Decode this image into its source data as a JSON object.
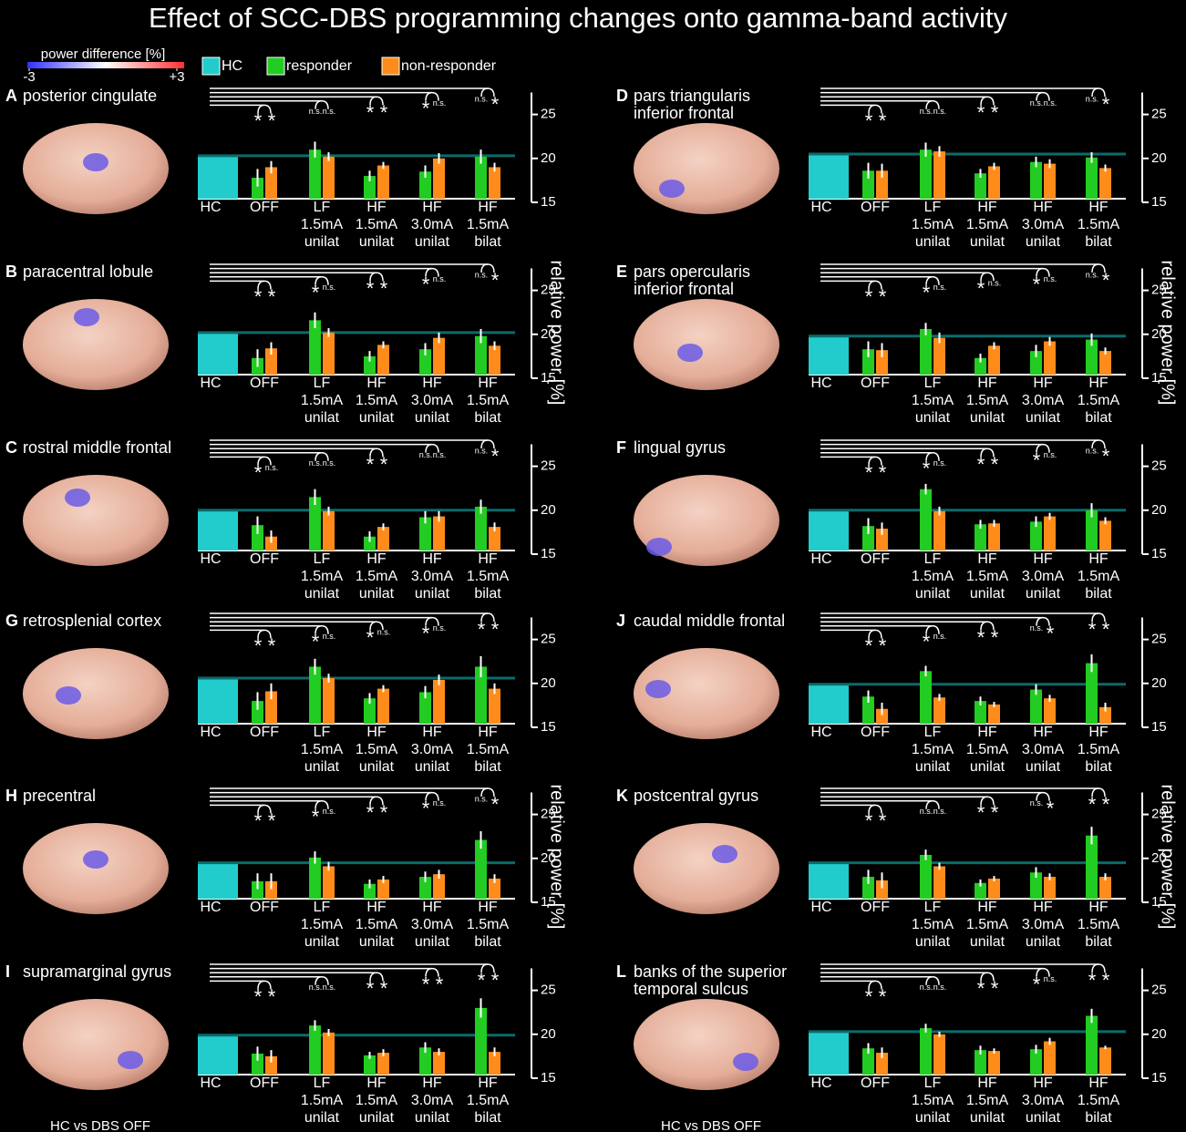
{
  "title": "Effect of SCC-DBS programming changes onto gamma-band activity",
  "colorbar": {
    "label": "power difference [%]",
    "ticks": [
      {
        "value": -3,
        "label": "-3"
      },
      {
        "value": 3,
        "label": "+3"
      }
    ],
    "colors": [
      "#3030ff",
      "#ffffff",
      "#ff3030"
    ]
  },
  "legend": [
    {
      "name": "HC",
      "color": "#22cccc"
    },
    {
      "name": "responder",
      "color": "#22cc22"
    },
    {
      "name": "non-responder",
      "color": "#ff8c1a"
    }
  ],
  "categories": [
    [
      "HC"
    ],
    [
      "OFF"
    ],
    [
      "LF",
      "1.5mA",
      "unilat"
    ],
    [
      "HF",
      "1.5mA",
      "unilat"
    ],
    [
      "HF",
      "3.0mA",
      "unilat"
    ],
    [
      "HF",
      "1.5mA",
      "bilat"
    ]
  ],
  "ylim": [
    15,
    27.5
  ],
  "yticks": [
    15,
    20,
    25
  ],
  "y_label": "relative power [%]",
  "footnote": "HC vs DBS OFF",
  "chart_data": [
    {
      "type": "bar",
      "label": "A",
      "title": [
        "posterior cingulate"
      ],
      "series": [
        {
          "values": [
            20.3,
            null,
            null,
            null,
            null,
            null
          ],
          "errors": [
            0.1,
            null,
            null,
            null,
            null,
            null
          ]
        },
        {
          "values": [
            null,
            17.8,
            21.0,
            18.0,
            18.5,
            20.2
          ],
          "errors": [
            null,
            1.0,
            0.9,
            0.6,
            0.7,
            0.8
          ]
        },
        {
          "values": [
            null,
            19.0,
            20.2,
            19.2,
            20.0,
            19.0
          ],
          "errors": [
            null,
            0.7,
            0.5,
            0.4,
            0.6,
            0.5
          ]
        }
      ],
      "significance": [
        [
          "*",
          "*"
        ],
        [
          "n.s.",
          "n.s."
        ],
        [
          "*",
          "*"
        ],
        [
          "*",
          "n.s."
        ],
        [
          "n.s.",
          "*"
        ]
      ]
    },
    {
      "type": "bar",
      "label": "B",
      "title": [
        "paracentral lobule"
      ],
      "series": [
        {
          "values": [
            20.2,
            null,
            null,
            null,
            null,
            null
          ],
          "errors": [
            0.1,
            null,
            null,
            null,
            null,
            null
          ]
        },
        {
          "values": [
            null,
            17.3,
            21.6,
            17.5,
            18.3,
            19.8
          ],
          "errors": [
            null,
            1.0,
            0.9,
            0.6,
            0.7,
            0.8
          ]
        },
        {
          "values": [
            null,
            18.4,
            20.2,
            18.8,
            19.6,
            18.7
          ],
          "errors": [
            null,
            0.7,
            0.5,
            0.4,
            0.6,
            0.5
          ]
        }
      ],
      "significance": [
        [
          "*",
          "*"
        ],
        [
          "*",
          "n.s."
        ],
        [
          "*",
          "*"
        ],
        [
          "*",
          "n.s."
        ],
        [
          "n.s.",
          "*"
        ]
      ]
    },
    {
      "type": "bar",
      "label": "C",
      "title": [
        "rostral middle frontal"
      ],
      "series": [
        {
          "values": [
            20.0,
            null,
            null,
            null,
            null,
            null
          ],
          "errors": [
            0.1,
            null,
            null,
            null,
            null,
            null
          ]
        },
        {
          "values": [
            null,
            18.3,
            21.5,
            17.0,
            19.2,
            20.4
          ],
          "errors": [
            null,
            1.0,
            0.9,
            0.6,
            0.7,
            0.8
          ]
        },
        {
          "values": [
            null,
            17.0,
            19.9,
            18.1,
            19.3,
            18.1
          ],
          "errors": [
            null,
            0.7,
            0.5,
            0.4,
            0.6,
            0.5
          ]
        }
      ],
      "significance": [
        [
          "*",
          "n.s."
        ],
        [
          "n.s.",
          "n.s."
        ],
        [
          "*",
          "*"
        ],
        [
          "n.s.",
          "n.s."
        ],
        [
          "n.s.",
          "*"
        ]
      ]
    },
    {
      "type": "bar",
      "label": "G",
      "title": [
        "retrosplenial cortex"
      ],
      "series": [
        {
          "values": [
            20.6,
            null,
            null,
            null,
            null,
            null
          ],
          "errors": [
            0.1,
            null,
            null,
            null,
            null,
            null
          ]
        },
        {
          "values": [
            null,
            18.0,
            21.9,
            18.3,
            19.0,
            21.9
          ],
          "errors": [
            null,
            1.0,
            0.9,
            0.6,
            0.7,
            1.2
          ]
        },
        {
          "values": [
            null,
            19.1,
            20.6,
            19.4,
            20.4,
            19.4
          ],
          "errors": [
            null,
            0.9,
            0.5,
            0.4,
            0.6,
            0.6
          ]
        }
      ],
      "significance": [
        [
          "*",
          "*"
        ],
        [
          "*",
          "n.s."
        ],
        [
          "*",
          "n.s."
        ],
        [
          "*",
          "n.s."
        ],
        [
          "*",
          "*"
        ]
      ]
    },
    {
      "type": "bar",
      "label": "H",
      "title": [
        "precentral"
      ],
      "series": [
        {
          "values": [
            19.5,
            null,
            null,
            null,
            null,
            null
          ],
          "errors": [
            0.1,
            null,
            null,
            null,
            null,
            null
          ]
        },
        {
          "values": [
            null,
            17.4,
            20.1,
            17.1,
            17.9,
            22.1
          ],
          "errors": [
            null,
            0.9,
            0.7,
            0.5,
            0.6,
            1.0
          ]
        },
        {
          "values": [
            null,
            17.4,
            19.1,
            17.6,
            18.2,
            17.7
          ],
          "errors": [
            null,
            0.9,
            0.5,
            0.4,
            0.5,
            0.5
          ]
        }
      ],
      "significance": [
        [
          "*",
          "*"
        ],
        [
          "*",
          "n.s."
        ],
        [
          "*",
          "*"
        ],
        [
          "*",
          "n.s."
        ],
        [
          "n.s.",
          "*"
        ]
      ]
    },
    {
      "type": "bar",
      "label": "I",
      "title": [
        "supramarginal gyrus"
      ],
      "series": [
        {
          "values": [
            19.9,
            null,
            null,
            null,
            null,
            null
          ],
          "errors": [
            0.1,
            null,
            null,
            null,
            null,
            null
          ]
        },
        {
          "values": [
            null,
            17.8,
            21.0,
            17.6,
            18.5,
            23.0
          ],
          "errors": [
            null,
            0.8,
            0.6,
            0.4,
            0.6,
            1.1
          ]
        },
        {
          "values": [
            null,
            17.5,
            20.2,
            17.9,
            18.0,
            18.0
          ],
          "errors": [
            null,
            0.7,
            0.4,
            0.4,
            0.4,
            0.5
          ]
        }
      ],
      "significance": [
        [
          "*",
          "*"
        ],
        [
          "n.s.",
          "n.s."
        ],
        [
          "*",
          "*"
        ],
        [
          "*",
          "*"
        ],
        [
          "*",
          "*"
        ]
      ]
    },
    {
      "type": "bar",
      "label": "D",
      "title": [
        "pars triangularis",
        "inferior frontal"
      ],
      "series": [
        {
          "values": [
            20.5,
            null,
            null,
            null,
            null,
            null
          ],
          "errors": [
            0.1,
            null,
            null,
            null,
            null,
            null
          ]
        },
        {
          "values": [
            null,
            18.6,
            21.0,
            18.3,
            19.6,
            20.1
          ],
          "errors": [
            null,
            0.9,
            0.8,
            0.5,
            0.6,
            0.6
          ]
        },
        {
          "values": [
            null,
            18.6,
            20.8,
            19.1,
            19.4,
            18.9
          ],
          "errors": [
            null,
            0.8,
            0.6,
            0.4,
            0.5,
            0.4
          ]
        }
      ],
      "significance": [
        [
          "*",
          "*"
        ],
        [
          "n.s.",
          "n.s."
        ],
        [
          "*",
          "*"
        ],
        [
          "n.s.",
          "n.s."
        ],
        [
          "n.s.",
          "*"
        ]
      ]
    },
    {
      "type": "bar",
      "label": "E",
      "title": [
        "pars opercularis",
        "inferior frontal"
      ],
      "series": [
        {
          "values": [
            19.8,
            null,
            null,
            null,
            null,
            null
          ],
          "errors": [
            0.1,
            null,
            null,
            null,
            null,
            null
          ]
        },
        {
          "values": [
            null,
            18.3,
            20.6,
            17.3,
            18.1,
            19.4
          ],
          "errors": [
            null,
            0.9,
            0.7,
            0.5,
            0.7,
            0.7
          ]
        },
        {
          "values": [
            null,
            18.2,
            19.6,
            18.7,
            19.2,
            18.1
          ],
          "errors": [
            null,
            0.8,
            0.6,
            0.4,
            0.5,
            0.4
          ]
        }
      ],
      "significance": [
        [
          "*",
          "*"
        ],
        [
          "*",
          "n.s."
        ],
        [
          "*",
          "n.s."
        ],
        [
          "*",
          "n.s."
        ],
        [
          "n.s.",
          "*"
        ]
      ]
    },
    {
      "type": "bar",
      "label": "F",
      "title": [
        "lingual gyrus"
      ],
      "series": [
        {
          "values": [
            20.0,
            null,
            null,
            null,
            null,
            null
          ],
          "errors": [
            0.1,
            null,
            null,
            null,
            null,
            null
          ]
        },
        {
          "values": [
            null,
            18.2,
            22.4,
            18.4,
            18.7,
            20.0
          ],
          "errors": [
            null,
            0.9,
            0.6,
            0.5,
            0.6,
            0.8
          ]
        },
        {
          "values": [
            null,
            17.9,
            19.9,
            18.5,
            19.3,
            18.8
          ],
          "errors": [
            null,
            0.7,
            0.5,
            0.4,
            0.4,
            0.4
          ]
        }
      ],
      "significance": [
        [
          "*",
          "*"
        ],
        [
          "*",
          "n.s."
        ],
        [
          "*",
          "*"
        ],
        [
          "*",
          "n.s."
        ],
        [
          "n.s.",
          "*"
        ]
      ]
    },
    {
      "type": "bar",
      "label": "J",
      "title": [
        "caudal middle frontal"
      ],
      "series": [
        {
          "values": [
            19.9,
            null,
            null,
            null,
            null,
            null
          ],
          "errors": [
            0.1,
            null,
            null,
            null,
            null,
            null
          ]
        },
        {
          "values": [
            null,
            18.5,
            21.4,
            18.0,
            19.3,
            22.3
          ],
          "errors": [
            null,
            0.7,
            0.6,
            0.5,
            0.6,
            1.0
          ]
        },
        {
          "values": [
            null,
            17.1,
            18.4,
            17.6,
            18.3,
            17.3
          ],
          "errors": [
            null,
            0.7,
            0.4,
            0.3,
            0.4,
            0.5
          ]
        }
      ],
      "significance": [
        [
          "*",
          "*"
        ],
        [
          "*",
          "n.s."
        ],
        [
          "*",
          "*"
        ],
        [
          "n.s.",
          "*"
        ],
        [
          "*",
          "*"
        ]
      ]
    },
    {
      "type": "bar",
      "label": "K",
      "title": [
        "postcentral gyrus"
      ],
      "series": [
        {
          "values": [
            19.5,
            null,
            null,
            null,
            null,
            null
          ],
          "errors": [
            0.1,
            null,
            null,
            null,
            null,
            null
          ]
        },
        {
          "values": [
            null,
            17.9,
            20.4,
            17.2,
            18.4,
            22.6
          ],
          "errors": [
            null,
            0.8,
            0.6,
            0.4,
            0.6,
            1.0
          ]
        },
        {
          "values": [
            null,
            17.5,
            19.1,
            17.7,
            17.9,
            17.9
          ],
          "errors": [
            null,
            0.9,
            0.4,
            0.3,
            0.4,
            0.4
          ]
        }
      ],
      "significance": [
        [
          "*",
          "*"
        ],
        [
          "n.s.",
          "n.s."
        ],
        [
          "*",
          "*"
        ],
        [
          "n.s.",
          "*"
        ],
        [
          "*",
          "*"
        ]
      ]
    },
    {
      "type": "bar",
      "label": "L",
      "title": [
        "banks of the superior",
        "temporal sulcus"
      ],
      "series": [
        {
          "values": [
            20.3,
            null,
            null,
            null,
            null,
            null
          ],
          "errors": [
            0.1,
            null,
            null,
            null,
            null,
            null
          ]
        },
        {
          "values": [
            null,
            18.4,
            20.7,
            18.2,
            18.3,
            22.1
          ],
          "errors": [
            null,
            0.6,
            0.5,
            0.5,
            0.5,
            0.8
          ]
        },
        {
          "values": [
            null,
            17.9,
            20.0,
            18.1,
            19.2,
            18.5
          ],
          "errors": [
            null,
            0.6,
            0.3,
            0.3,
            0.4,
            0.2
          ]
        }
      ],
      "significance": [
        [
          "*",
          "*"
        ],
        [
          "n.s.",
          "n.s."
        ],
        [
          "*",
          "*"
        ],
        [
          "*",
          "n.s."
        ],
        [
          "*",
          "*"
        ]
      ]
    }
  ]
}
